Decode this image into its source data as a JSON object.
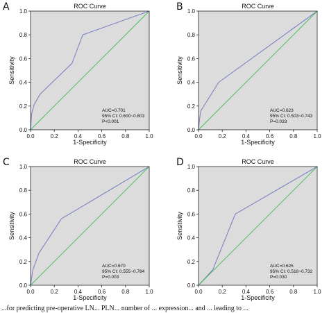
{
  "caption": "...for predicting pre-operative LN... PLN... number of ... expression... and ... leading to ...",
  "chart_data": [
    {
      "panel": "A",
      "type": "line",
      "title": "ROC Curve",
      "xlabel": "1-Specificity",
      "ylabel": "Sensitivity",
      "xlim": [
        0,
        1
      ],
      "ylim": [
        0,
        1
      ],
      "xticks": [
        "0.0",
        "0.2",
        "0.4",
        "0.6",
        "0.8",
        "1.0"
      ],
      "yticks": [
        "0.0",
        "0.2",
        "0.4",
        "0.6",
        "0.8",
        "1.0"
      ],
      "grid": false,
      "annotations": [
        "AUC=0.701",
        "95% CI: 0.600~0.803",
        "P<0.001"
      ],
      "series": [
        {
          "role": "roc",
          "color": "#7c83c2",
          "x": [
            0,
            0.01,
            0.03,
            0.08,
            0.35,
            0.44,
            1.0
          ],
          "y": [
            0,
            0.14,
            0.21,
            0.3,
            0.56,
            0.8,
            1.0
          ]
        },
        {
          "role": "reference",
          "color": "#3fbf4f",
          "x": [
            0,
            1
          ],
          "y": [
            0,
            1
          ]
        }
      ]
    },
    {
      "panel": "B",
      "type": "line",
      "title": "ROC Curve",
      "xlabel": "1-Specificity",
      "ylabel": "Sensitivity",
      "xlim": [
        0,
        1
      ],
      "ylim": [
        0,
        1
      ],
      "xticks": [
        "0.0",
        "0.2",
        "0.4",
        "0.6",
        "0.8",
        "1.0"
      ],
      "yticks": [
        "0.0",
        "0.2",
        "0.4",
        "0.6",
        "0.8",
        "1.0"
      ],
      "grid": false,
      "annotations": [
        "AUC=0.623",
        "95% CI: 0.503~0.743",
        "P=0.033"
      ],
      "series": [
        {
          "role": "roc",
          "color": "#7c83c2",
          "x": [
            0,
            0.01,
            0.02,
            0.17,
            1.0
          ],
          "y": [
            0,
            0.1,
            0.16,
            0.4,
            1.0
          ]
        },
        {
          "role": "reference",
          "color": "#3fbf4f",
          "x": [
            0,
            1
          ],
          "y": [
            0,
            1
          ]
        }
      ]
    },
    {
      "panel": "C",
      "type": "line",
      "title": "ROC Curve",
      "xlabel": "1-Specificity",
      "ylabel": "Sensitivity",
      "xlim": [
        0,
        1
      ],
      "ylim": [
        0,
        1
      ],
      "xticks": [
        "0.0",
        "0.2",
        "0.4",
        "0.6",
        "0.8",
        "1.0"
      ],
      "yticks": [
        "0.0",
        "0.2",
        "0.4",
        "0.6",
        "0.8",
        "1.0"
      ],
      "grid": false,
      "annotations": [
        "AUC=0.670",
        "95% CI: 0.555~0.784",
        "P=0.003"
      ],
      "series": [
        {
          "role": "roc",
          "color": "#7c83c2",
          "x": [
            0,
            0.02,
            0.07,
            0.26,
            1.0
          ],
          "y": [
            0,
            0.13,
            0.27,
            0.56,
            1.0
          ]
        },
        {
          "role": "reference",
          "color": "#3fbf4f",
          "x": [
            0,
            1
          ],
          "y": [
            0,
            1
          ]
        }
      ]
    },
    {
      "panel": "D",
      "type": "line",
      "title": "ROC Curve",
      "xlabel": "1-Specificity",
      "ylabel": "Sensitivity",
      "xlim": [
        0,
        1
      ],
      "ylim": [
        0,
        1
      ],
      "xticks": [
        "0.0",
        "0.2",
        "0.4",
        "0.6",
        "0.8",
        "1.0"
      ],
      "yticks": [
        "0.0",
        "0.2",
        "0.4",
        "0.6",
        "0.8",
        "1.0"
      ],
      "grid": false,
      "annotations": [
        "AUC=0.625",
        "95% CI: 0.518~0.732",
        "P=0.030"
      ],
      "series": [
        {
          "role": "roc",
          "color": "#7c83c2",
          "x": [
            0,
            0.12,
            0.31,
            1.0
          ],
          "y": [
            0,
            0.13,
            0.6,
            1.0
          ]
        },
        {
          "role": "reference",
          "color": "#3fbf4f",
          "x": [
            0,
            1
          ],
          "y": [
            0,
            1
          ]
        }
      ]
    }
  ],
  "style": {
    "plot_background": "#dcdcdc",
    "axis_color": "#222222"
  }
}
